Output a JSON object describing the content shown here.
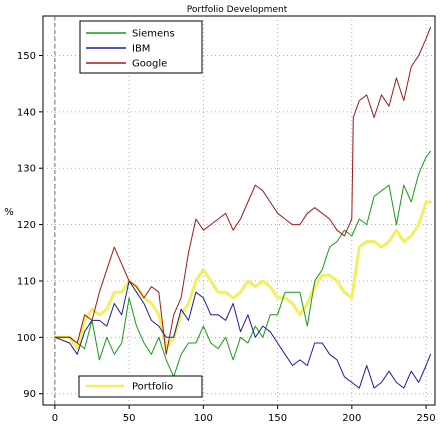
{
  "chart_data": {
    "type": "line",
    "title": "Portfolio Development",
    "xlabel": "",
    "ylabel": "%",
    "xlim": [
      -8,
      256
    ],
    "ylim": [
      88,
      157
    ],
    "x_ticks": [
      0,
      50,
      100,
      150,
      200,
      250
    ],
    "y_ticks": [
      90,
      100,
      110,
      120,
      130,
      140,
      150
    ],
    "grid": true,
    "legend_top": {
      "placement": "top-left",
      "entries": [
        "Siemens",
        "IBM",
        "Google"
      ]
    },
    "legend_bottom": {
      "placement": "bottom-left",
      "entries": [
        "Portfolio"
      ]
    },
    "series": [
      {
        "name": "Siemens",
        "color": "#1a9a1a",
        "x": [
          0,
          10,
          20,
          25,
          30,
          35,
          40,
          45,
          50,
          55,
          60,
          65,
          70,
          75,
          80,
          85,
          90,
          95,
          100,
          105,
          110,
          115,
          120,
          125,
          130,
          135,
          140,
          145,
          150,
          155,
          160,
          165,
          170,
          175,
          180,
          185,
          190,
          195,
          200,
          205,
          210,
          215,
          220,
          225,
          230,
          235,
          240,
          245,
          250,
          253
        ],
        "values": [
          100,
          100,
          98,
          103,
          96,
          100,
          97,
          99,
          107,
          102,
          99,
          97,
          100,
          96,
          93,
          97,
          99,
          99,
          102,
          99,
          98,
          100,
          96,
          100,
          99,
          102,
          100,
          104,
          104,
          108,
          108,
          108,
          102,
          110,
          112,
          116,
          117,
          119,
          118,
          121,
          120,
          125,
          126,
          127,
          120,
          127,
          124,
          129,
          132,
          133
        ]
      },
      {
        "name": "IBM",
        "color": "#1d1d9e",
        "x": [
          0,
          10,
          15,
          20,
          25,
          30,
          35,
          40,
          45,
          50,
          55,
          60,
          65,
          70,
          75,
          80,
          85,
          90,
          95,
          100,
          105,
          110,
          115,
          120,
          125,
          130,
          135,
          140,
          145,
          150,
          155,
          160,
          165,
          170,
          175,
          180,
          185,
          190,
          195,
          200,
          205,
          210,
          215,
          220,
          225,
          230,
          235,
          240,
          245,
          250,
          253
        ],
        "values": [
          100,
          99,
          97,
          101,
          103,
          103,
          102,
          106,
          104,
          110,
          108,
          106,
          103,
          102,
          100,
          100,
          105,
          103,
          108,
          107,
          104,
          104,
          103,
          106,
          101,
          104,
          100,
          102,
          101,
          99,
          97,
          95,
          96,
          95,
          99,
          99,
          97,
          96,
          93,
          92,
          91,
          95,
          91,
          92,
          94,
          92,
          91,
          94,
          92,
          95,
          97
        ]
      },
      {
        "name": "Google",
        "color": "#9e1a1a",
        "x": [
          0,
          10,
          15,
          20,
          25,
          30,
          35,
          40,
          45,
          50,
          55,
          60,
          65,
          70,
          75,
          80,
          85,
          90,
          95,
          100,
          105,
          110,
          115,
          120,
          125,
          130,
          135,
          140,
          145,
          150,
          155,
          160,
          165,
          170,
          175,
          180,
          185,
          190,
          195,
          200,
          201,
          205,
          210,
          215,
          220,
          225,
          230,
          235,
          240,
          245,
          250,
          253
        ],
        "values": [
          100,
          100,
          99,
          104,
          103,
          108,
          112,
          116,
          113,
          110,
          109,
          107,
          109,
          108,
          97,
          104,
          107,
          115,
          121,
          119,
          120,
          121,
          122,
          119,
          121,
          124,
          127,
          126,
          124,
          122,
          121,
          120,
          120,
          122,
          123,
          122,
          121,
          119,
          118,
          121,
          139,
          142,
          143,
          139,
          143,
          141,
          146,
          142,
          148,
          150,
          153,
          155
        ]
      },
      {
        "name": "Portfolio",
        "color": "#f0f060",
        "x": [
          0,
          10,
          15,
          20,
          25,
          30,
          35,
          40,
          45,
          50,
          55,
          60,
          65,
          70,
          75,
          80,
          85,
          90,
          95,
          100,
          105,
          110,
          115,
          120,
          125,
          130,
          135,
          140,
          145,
          150,
          155,
          160,
          165,
          170,
          175,
          180,
          185,
          190,
          195,
          200,
          205,
          210,
          215,
          220,
          225,
          230,
          235,
          240,
          245,
          250,
          253
        ],
        "values": [
          100,
          100,
          98,
          103,
          105,
          104,
          105,
          108,
          108,
          110,
          109,
          107,
          106,
          104,
          98,
          100,
          104,
          106,
          110,
          112,
          110,
          108,
          108,
          107,
          108,
          110,
          109,
          110,
          109,
          107,
          107,
          106,
          104,
          106,
          109,
          111,
          111,
          110,
          108,
          107,
          116,
          117,
          117,
          116,
          117,
          119,
          117,
          118,
          120,
          124,
          124
        ]
      }
    ]
  }
}
